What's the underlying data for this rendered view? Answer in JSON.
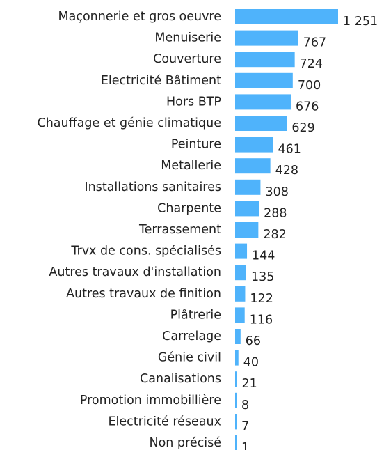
{
  "chart_data": {
    "type": "bar",
    "orientation": "horizontal",
    "categories": [
      "Maçonnerie et gros oeuvre",
      "Menuiserie",
      "Couverture",
      "Electricité Bâtiment",
      "Hors BTP",
      "Chauffage et génie climatique",
      "Peinture",
      "Metallerie",
      "Installations sanitaires",
      "Charpente",
      "Terrassement",
      "Trvx de cons. spécialisés",
      "Autres travaux d'installation",
      "Autres travaux de finition",
      "Plâtrerie",
      "Carrelage",
      "Génie civil",
      "Canalisations",
      "Promotion immobillière",
      "Electricité réseaux",
      "Non précisé"
    ],
    "values": [
      1251,
      767,
      724,
      700,
      676,
      629,
      461,
      428,
      308,
      288,
      282,
      144,
      135,
      122,
      116,
      66,
      40,
      21,
      8,
      7,
      1
    ],
    "value_labels": [
      "1 251",
      "767",
      "724",
      "700",
      "676",
      "629",
      "461",
      "428",
      "308",
      "288",
      "282",
      "144",
      "135",
      "122",
      "116",
      "66",
      "40",
      "21",
      "8",
      "7",
      "1"
    ],
    "color": "#4fb3fb"
  }
}
